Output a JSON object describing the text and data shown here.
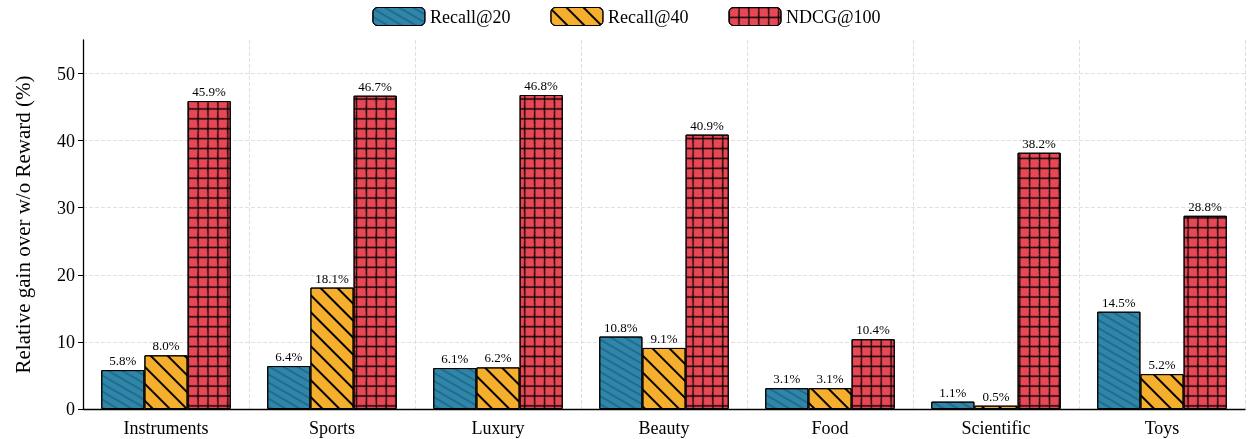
{
  "chart_data": {
    "type": "bar",
    "ylabel": "Relative gain over w/o Reward (%)",
    "categories": [
      "Instruments",
      "Sports",
      "Luxury",
      "Beauty",
      "Food",
      "Scientific",
      "Toys"
    ],
    "series": [
      {
        "name": "Recall@20",
        "color": "#2e86ab",
        "values": [
          5.8,
          6.4,
          6.1,
          10.8,
          3.1,
          1.1,
          14.5
        ],
        "value_labels": [
          "5.8%",
          "6.4%",
          "6.1%",
          "10.8%",
          "3.1%",
          "1.1%",
          "14.5%"
        ]
      },
      {
        "name": "Recall@40",
        "color": "#f6ae2d",
        "values": [
          8.0,
          18.1,
          6.2,
          9.1,
          3.1,
          0.5,
          5.2
        ],
        "value_labels": [
          "8.0%",
          "18.1%",
          "6.2%",
          "9.1%",
          "3.1%",
          "0.5%",
          "5.2%"
        ]
      },
      {
        "name": "NDCG@100",
        "color": "#e84855",
        "values": [
          45.9,
          46.7,
          46.8,
          40.9,
          10.4,
          38.2,
          28.8
        ],
        "value_labels": [
          "45.9%",
          "46.7%",
          "46.8%",
          "40.9%",
          "10.4%",
          "38.2%",
          "28.8%"
        ]
      }
    ],
    "ylim": [
      0,
      55
    ],
    "yticks": [
      0,
      10,
      20,
      30,
      40,
      50
    ],
    "grid": true,
    "legend": "top"
  }
}
